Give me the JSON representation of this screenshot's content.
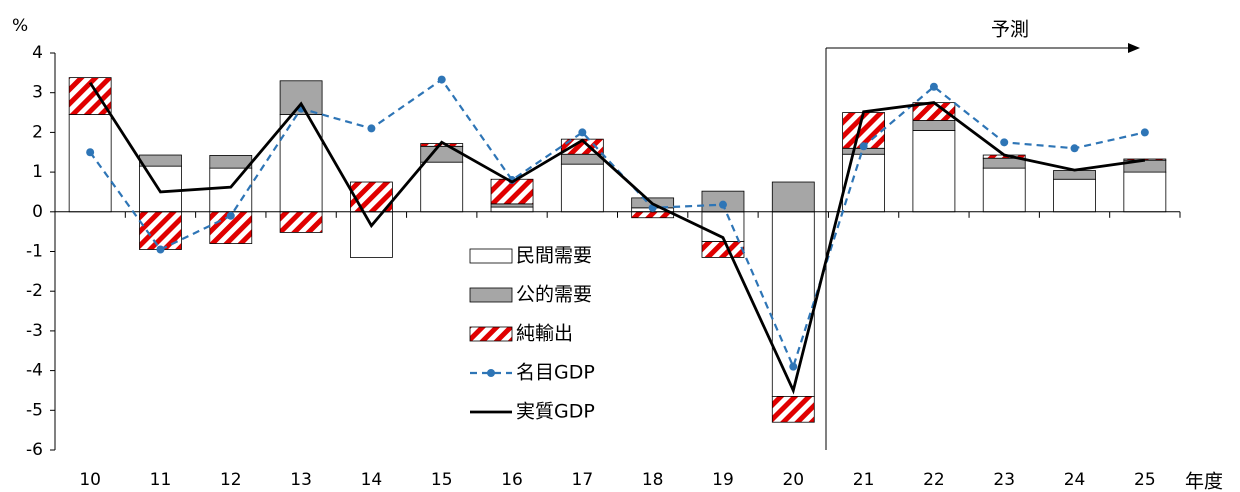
{
  "chart_data": {
    "type": "bar",
    "y_label": "%",
    "x_label": "年度",
    "annotation": "予測",
    "categories": [
      "10",
      "11",
      "12",
      "13",
      "14",
      "15",
      "16",
      "17",
      "18",
      "19",
      "20",
      "21",
      "22",
      "23",
      "24",
      "25"
    ],
    "series": [
      {
        "name": "民間需要",
        "type": "bar",
        "color": "#ffffff",
        "values": [
          2.45,
          1.15,
          1.1,
          2.45,
          -1.15,
          1.25,
          0.12,
          1.2,
          0.1,
          -0.75,
          -4.65,
          1.45,
          2.05,
          1.1,
          0.82,
          1.0
        ]
      },
      {
        "name": "公的需要",
        "type": "bar",
        "color": "#a6a6a6",
        "values": [
          0,
          0.28,
          0.32,
          0.85,
          0,
          0.4,
          0.08,
          0.25,
          0.25,
          0.52,
          0.75,
          0.15,
          0.25,
          0.25,
          0.22,
          0.3
        ]
      },
      {
        "name": "純輸出",
        "type": "hatched-bar",
        "color": "#e00000",
        "values": [
          0.93,
          -0.95,
          -0.8,
          -0.52,
          0.75,
          0.07,
          0.62,
          0.38,
          -0.15,
          -0.4,
          -0.65,
          0.9,
          0.45,
          0.08,
          0,
          0.03
        ]
      },
      {
        "name": "名目GDP",
        "type": "line",
        "color": "#2e75b6",
        "dashed": true,
        "markers": true,
        "values": [
          1.5,
          -0.95,
          -0.1,
          2.6,
          2.1,
          3.33,
          0.8,
          2.0,
          0.1,
          0.18,
          -3.9,
          1.65,
          3.15,
          1.75,
          1.6,
          2.0
        ]
      },
      {
        "name": "実質GDP",
        "type": "line",
        "color": "#000000",
        "dashed": false,
        "markers": false,
        "values": [
          3.25,
          0.5,
          0.62,
          2.72,
          -0.35,
          1.75,
          0.75,
          1.8,
          0.2,
          -0.65,
          -4.5,
          2.52,
          2.75,
          1.43,
          1.05,
          1.3
        ]
      }
    ],
    "ylim": [
      -6,
      4
    ],
    "yticks": [
      -6,
      -5,
      -4,
      -3,
      -2,
      -1,
      0,
      1,
      2,
      3,
      4
    ],
    "legend": "center"
  }
}
